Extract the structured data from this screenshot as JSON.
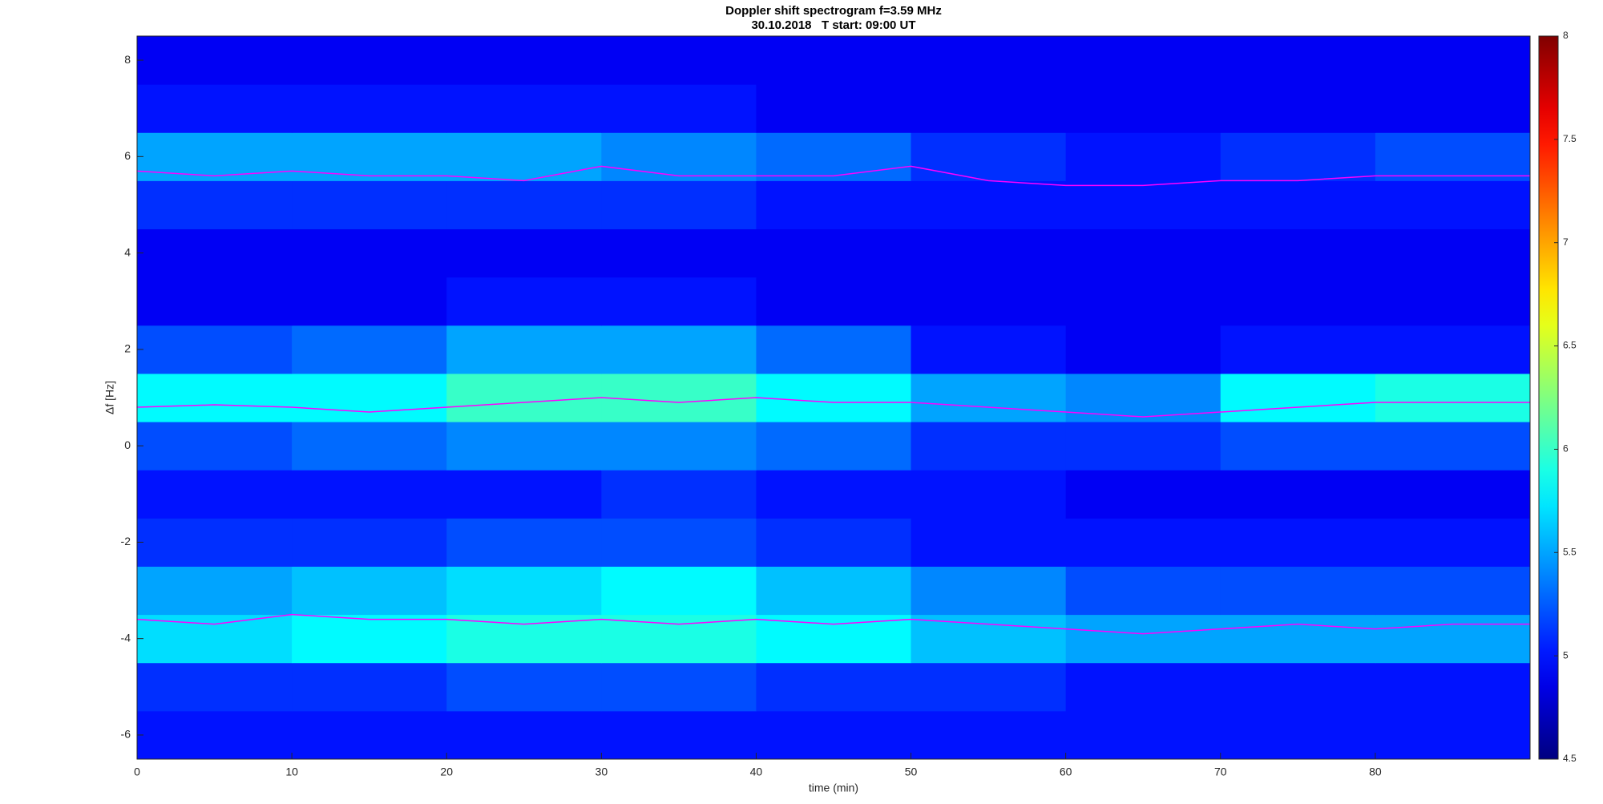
{
  "chart_data": {
    "type": "spectrogram",
    "title": "Doppler shift spectrogram f=3.59 MHz",
    "subtitle": "30.10.2018   T start: 09:00 UT",
    "xlabel": "time (min)",
    "ylabel": "Δf [Hz]",
    "xlim": [
      0,
      90
    ],
    "xticks": [
      0,
      10,
      20,
      30,
      40,
      50,
      60,
      70,
      80
    ],
    "ylim": [
      -6.5,
      8.5
    ],
    "yticks": [
      -6,
      -4,
      -2,
      0,
      2,
      4,
      6,
      8
    ],
    "colormap": "jet",
    "clim": [
      4.5,
      8
    ],
    "cticks": [
      4.5,
      5,
      5.5,
      6,
      6.5,
      7,
      7.5,
      8
    ],
    "xbins": [
      0,
      10,
      20,
      30,
      40,
      50,
      60,
      70,
      80,
      90
    ],
    "ybins": [
      -6.5,
      -5.5,
      -4.5,
      -3.5,
      -2.5,
      -1.5,
      -0.5,
      0.5,
      1.5,
      2.5,
      3.5,
      4.5,
      5.5,
      6.5,
      7.5,
      8.5
    ],
    "z": [
      [
        5.0,
        5.0,
        5.0,
        5.0,
        5.0,
        5.0,
        5.0,
        5.0,
        5.0
      ],
      [
        5.1,
        5.1,
        5.2,
        5.2,
        5.1,
        5.1,
        5.0,
        5.0,
        5.0
      ],
      [
        5.7,
        5.8,
        5.9,
        5.9,
        5.8,
        5.6,
        5.5,
        5.5,
        5.5
      ],
      [
        5.5,
        5.6,
        5.7,
        5.8,
        5.6,
        5.4,
        5.2,
        5.2,
        5.2
      ],
      [
        5.1,
        5.1,
        5.2,
        5.2,
        5.1,
        5.0,
        5.0,
        5.0,
        5.0
      ],
      [
        5.0,
        5.0,
        5.0,
        5.1,
        5.0,
        5.0,
        4.9,
        4.9,
        4.9
      ],
      [
        5.2,
        5.3,
        5.4,
        5.4,
        5.3,
        5.1,
        5.1,
        5.2,
        5.2
      ],
      [
        5.8,
        5.8,
        6.0,
        6.0,
        5.8,
        5.5,
        5.4,
        5.8,
        5.9
      ],
      [
        5.2,
        5.3,
        5.5,
        5.5,
        5.3,
        5.0,
        4.9,
        5.0,
        5.0
      ],
      [
        4.9,
        4.9,
        5.0,
        5.0,
        4.9,
        4.9,
        4.9,
        4.9,
        4.9
      ],
      [
        4.9,
        4.9,
        4.9,
        4.9,
        4.9,
        4.9,
        4.9,
        4.9,
        4.9
      ],
      [
        5.1,
        5.1,
        5.1,
        5.1,
        5.0,
        5.0,
        5.0,
        5.0,
        5.0
      ],
      [
        5.5,
        5.5,
        5.5,
        5.4,
        5.3,
        5.1,
        5.0,
        5.1,
        5.2
      ],
      [
        5.0,
        5.0,
        5.0,
        5.0,
        4.9,
        4.9,
        4.9,
        4.9,
        4.9
      ],
      [
        4.9,
        4.9,
        4.9,
        4.9,
        4.9,
        4.9,
        4.9,
        4.9,
        4.9
      ]
    ],
    "x": [
      0,
      5,
      10,
      15,
      20,
      25,
      30,
      35,
      40,
      45,
      50,
      55,
      60,
      65,
      70,
      75,
      80,
      85,
      90
    ],
    "series": [
      {
        "color": "#ff00ff",
        "values": [
          5.7,
          5.6,
          5.7,
          5.6,
          5.6,
          5.5,
          5.8,
          5.6,
          5.6,
          5.6,
          5.8,
          5.5,
          5.4,
          5.4,
          5.5,
          5.5,
          5.6,
          5.6,
          5.6
        ]
      },
      {
        "color": "#ff00ff",
        "values": [
          0.8,
          0.85,
          0.8,
          0.7,
          0.8,
          0.9,
          1.0,
          0.9,
          1.0,
          0.9,
          0.9,
          0.8,
          0.7,
          0.6,
          0.7,
          0.8,
          0.9,
          0.9,
          0.9
        ]
      },
      {
        "color": "#ff00ff",
        "values": [
          -3.6,
          -3.7,
          -3.5,
          -3.6,
          -3.6,
          -3.7,
          -3.6,
          -3.7,
          -3.6,
          -3.7,
          -3.6,
          -3.7,
          -3.8,
          -3.9,
          -3.8,
          -3.7,
          -3.8,
          -3.7,
          -3.7
        ]
      }
    ]
  }
}
